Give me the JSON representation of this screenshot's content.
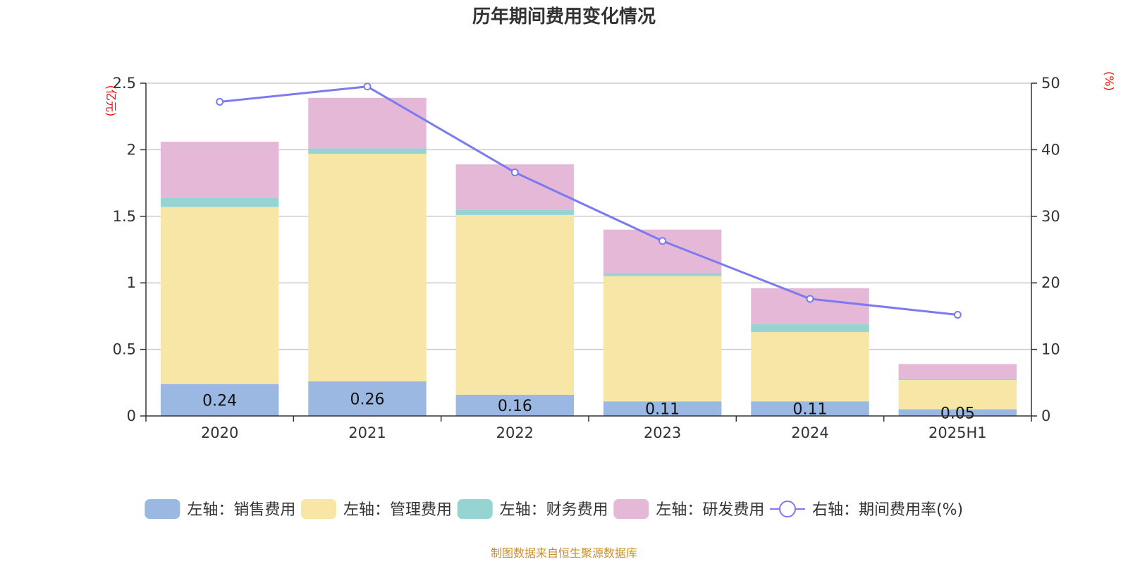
{
  "chart_data": {
    "type": "bar",
    "title": "历年期间费用变化情况",
    "categories": [
      "2020",
      "2021",
      "2022",
      "2023",
      "2024",
      "2025H1"
    ],
    "y_left": {
      "unit": "(亿元)",
      "range": [
        0,
        2.5
      ],
      "ticks": [
        "0",
        "0.5",
        "1",
        "1.5",
        "2",
        "2.5"
      ]
    },
    "y_right": {
      "unit": "(%)",
      "range": [
        0,
        50
      ],
      "ticks": [
        "0",
        "10",
        "20",
        "30",
        "40",
        "50"
      ]
    },
    "series": [
      {
        "name": "左轴：销售费用",
        "type": "bar",
        "axis": "left",
        "color": "#9bb8e2",
        "values": [
          0.24,
          0.26,
          0.16,
          0.11,
          0.11,
          0.05
        ],
        "data_labels": [
          "0.24",
          "0.26",
          "0.16",
          "0.11",
          "0.11",
          "0.05"
        ]
      },
      {
        "name": "左轴：管理费用",
        "type": "bar",
        "axis": "left",
        "color": "#f7e6a6",
        "values": [
          1.33,
          1.71,
          1.35,
          0.94,
          0.52,
          0.22
        ]
      },
      {
        "name": "左轴：财务费用",
        "type": "bar",
        "axis": "left",
        "color": "#96d4d4",
        "values": [
          0.07,
          0.04,
          0.04,
          0.02,
          0.06,
          0.01
        ]
      },
      {
        "name": "左轴：研发费用",
        "type": "bar",
        "axis": "left",
        "color": "#e6b8d8",
        "values": [
          0.42,
          0.38,
          0.34,
          0.33,
          0.27,
          0.11
        ]
      },
      {
        "name": "右轴：期间费用率(%)",
        "type": "line",
        "axis": "right",
        "color": "#7b7bef",
        "values": [
          47.2,
          49.5,
          36.6,
          26.3,
          17.6,
          15.2
        ]
      }
    ],
    "grid": true,
    "legend_position": "bottom"
  },
  "source": "制图数据来自恒生聚源数据库"
}
